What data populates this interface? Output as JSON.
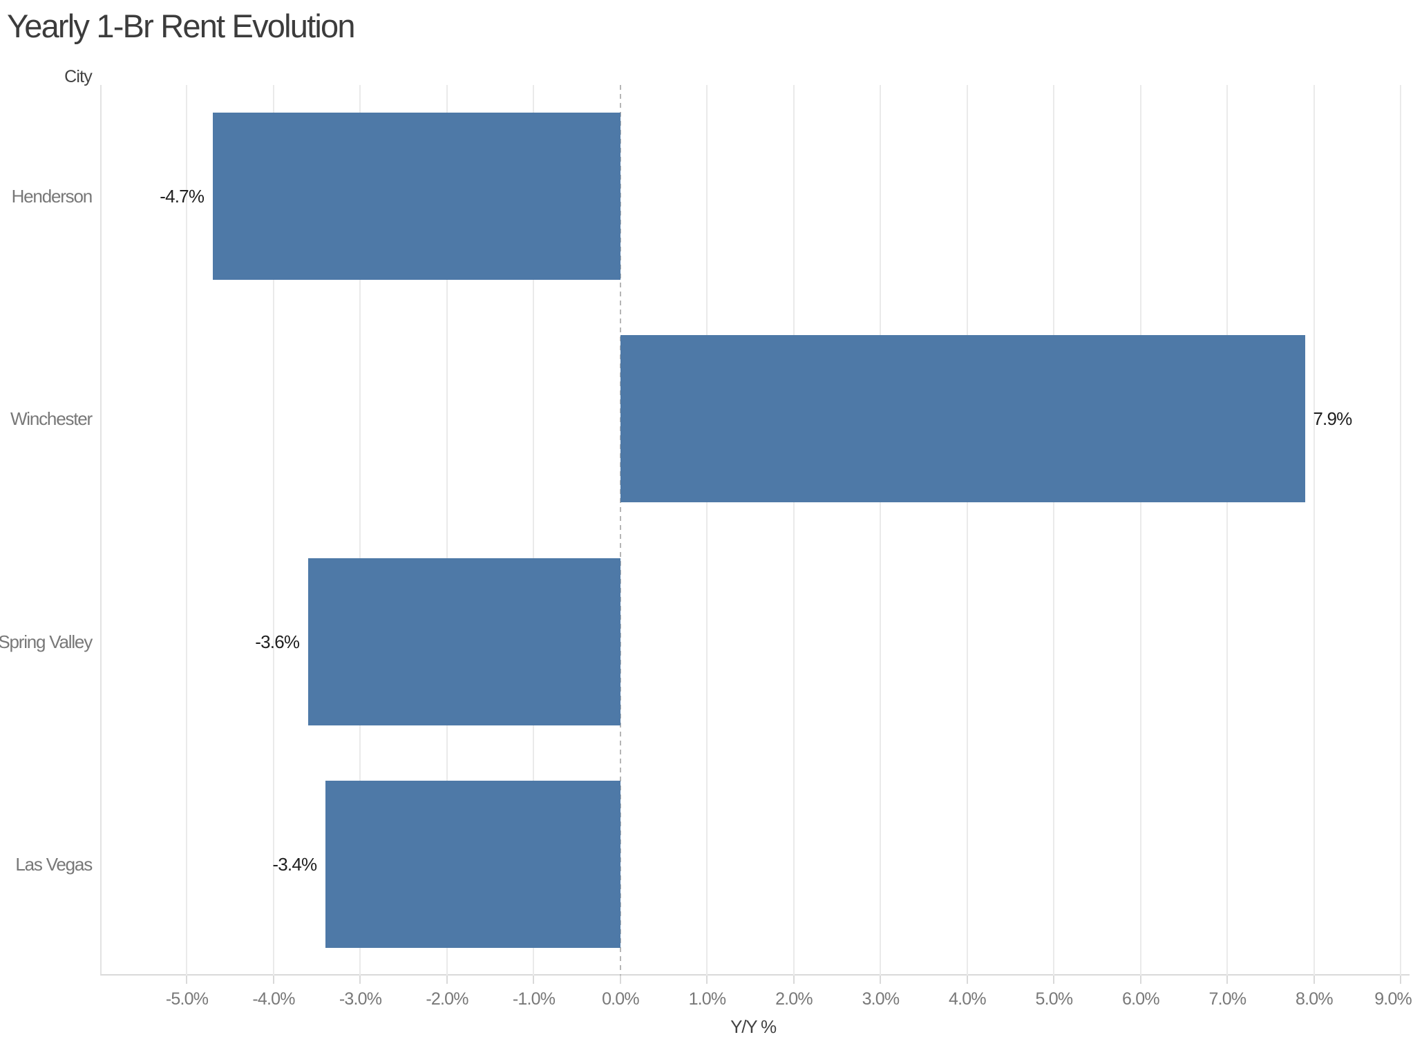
{
  "page": {
    "background": "#ffffff"
  },
  "chart_data": {
    "type": "bar",
    "orientation": "horizontal",
    "title": "Yearly 1-Br Rent Evolution",
    "xlabel": "Y/Y %",
    "ylabel": "City",
    "categories": [
      "Henderson",
      "Winchester",
      "Spring Valley",
      "Las Vegas"
    ],
    "values": [
      -4.7,
      7.9,
      -3.6,
      -3.4
    ],
    "value_labels": [
      "-4.7%",
      "7.9%",
      "-3.6%",
      "-3.4%"
    ],
    "xlim": [
      -6.0,
      9.1
    ],
    "x_ticks": [
      -5,
      -4,
      -3,
      -2,
      -1,
      0,
      1,
      2,
      3,
      4,
      5,
      6,
      7,
      8,
      9
    ],
    "x_tick_labels": [
      "-5.0%",
      "-4.0%",
      "-3.0%",
      "-2.0%",
      "-1.0%",
      "0.0%",
      "1.0%",
      "2.0%",
      "3.0%",
      "4.0%",
      "5.0%",
      "6.0%",
      "7.0%",
      "8.0%",
      "9.0%"
    ],
    "grid": "vertical",
    "legend": "none",
    "zero_line_style": "dashed"
  },
  "colors": {
    "bar": "#4e79a7",
    "title_text": "#3c3c3c",
    "axis_tick_text": "#787878",
    "city_label_text": "#787878",
    "axis_title_text": "#424242",
    "value_label_text": "#1e1e1e",
    "gridline": "#eaeaea",
    "zero_line": "#b5b5b5",
    "pane_border": "#e2e2e2",
    "axis_line": "#d9d9d9"
  }
}
